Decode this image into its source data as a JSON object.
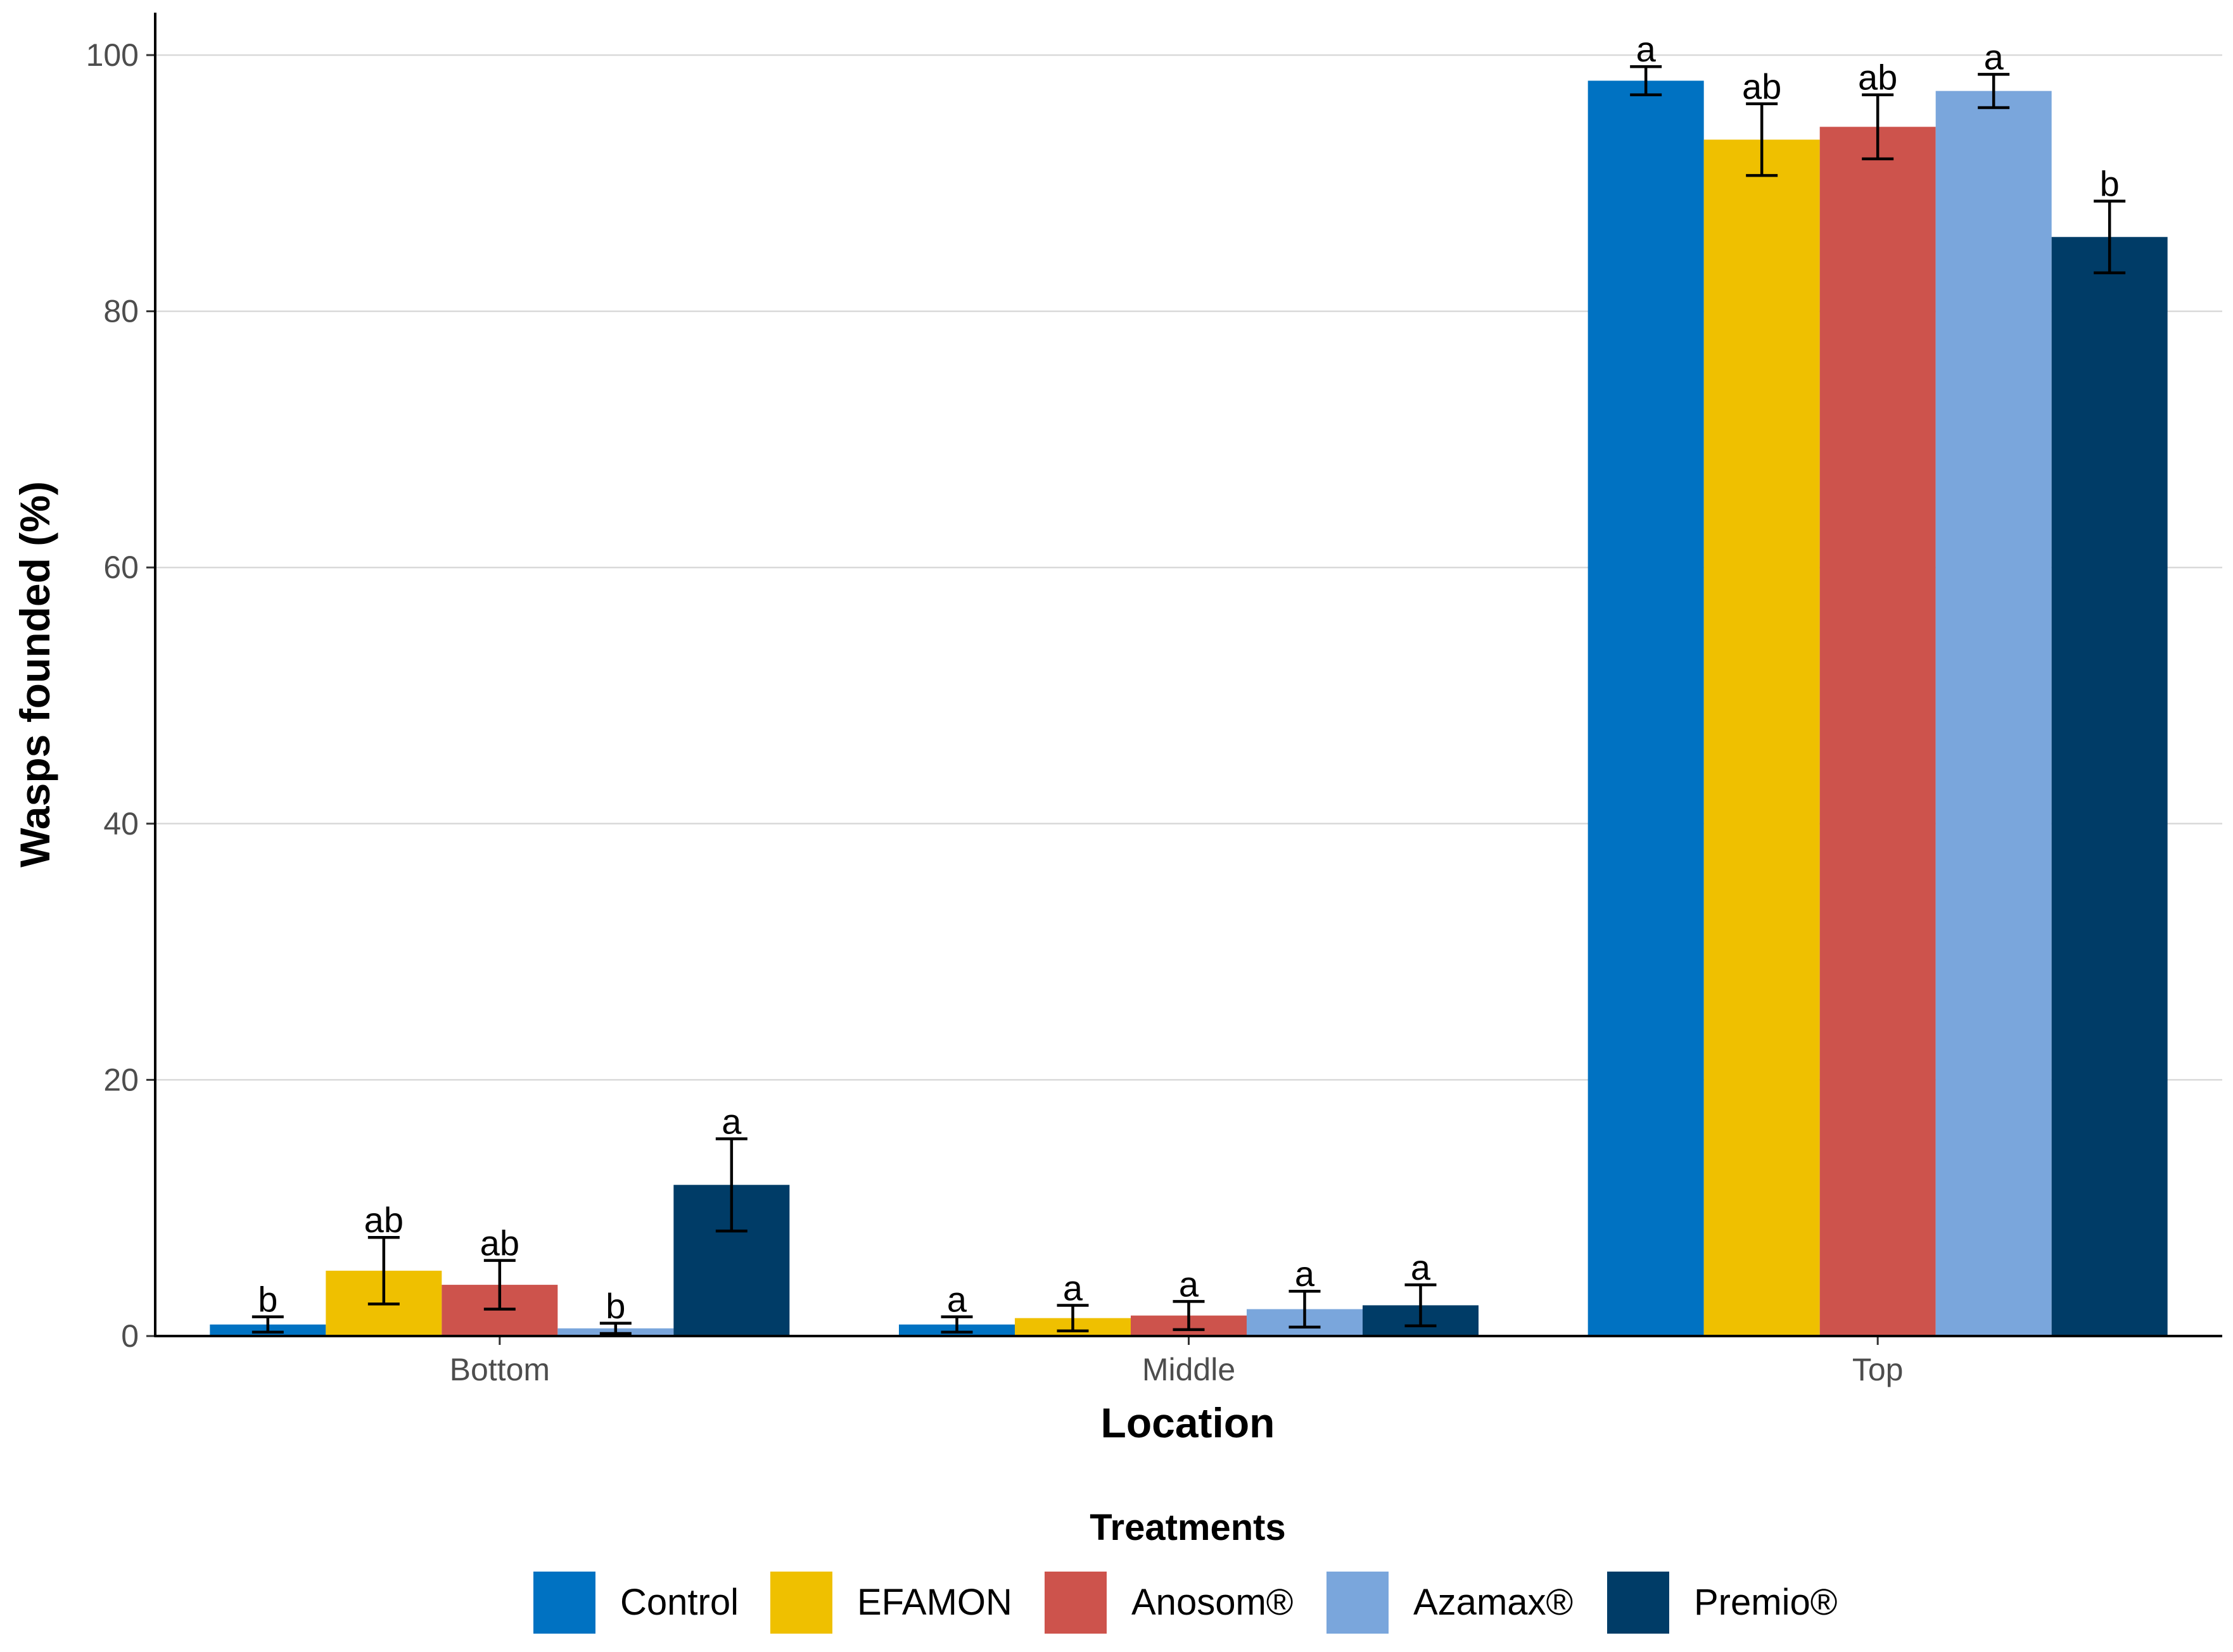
{
  "chart_data": {
    "type": "bar",
    "title": "",
    "xlabel": "Location",
    "ylabel": "Wasps founded (%)",
    "ylim": [
      0,
      100
    ],
    "yticks": [
      0,
      20,
      40,
      60,
      80,
      100
    ],
    "grid": "horizontal",
    "categories": [
      "Bottom",
      "Middle",
      "Top"
    ],
    "legend": {
      "title": "Treatments",
      "position": "bottom"
    },
    "series": [
      {
        "name": "Control",
        "color": "#0072C2",
        "values": [
          0.9,
          0.9,
          98.0
        ],
        "err": [
          0.6,
          0.6,
          1.1
        ],
        "letters": [
          "b",
          "a",
          "a"
        ]
      },
      {
        "name": "EFAMON",
        "color": "#EFC000",
        "values": [
          5.1,
          1.4,
          93.4
        ],
        "err": [
          2.6,
          1.0,
          2.8
        ],
        "letters": [
          "ab",
          "a",
          "ab"
        ]
      },
      {
        "name": "Anosom®",
        "color": "#CD534C",
        "values": [
          4.0,
          1.6,
          94.4
        ],
        "err": [
          1.9,
          1.1,
          2.5
        ],
        "letters": [
          "ab",
          "a",
          "ab"
        ]
      },
      {
        "name": "Azamax®",
        "color": "#7AA6DC",
        "values": [
          0.6,
          2.1,
          97.2
        ],
        "err": [
          0.4,
          1.4,
          1.3
        ],
        "letters": [
          "b",
          "a",
          "a"
        ]
      },
      {
        "name": "Premio®",
        "color": "#003C67",
        "values": [
          11.8,
          2.4,
          85.8
        ],
        "err": [
          3.6,
          1.6,
          2.8
        ],
        "letters": [
          "a",
          "a",
          "b"
        ]
      }
    ]
  }
}
